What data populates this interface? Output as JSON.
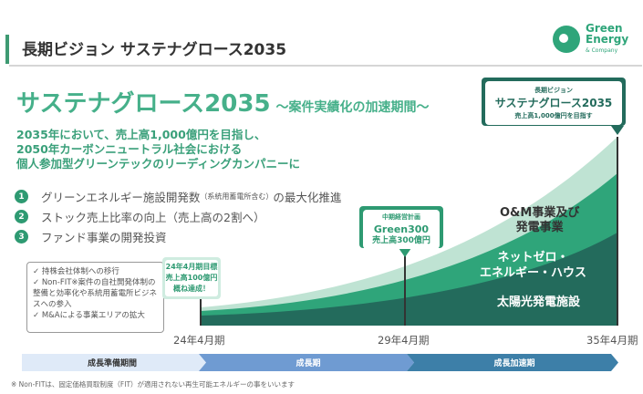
{
  "header": {
    "title": "長期ビジョン サステナグロース2035",
    "logo": {
      "line1": "Green",
      "line2": "Energy",
      "line3": "& Company"
    }
  },
  "headline": {
    "main": "サステナグロース2035",
    "sub": "～案件実績化の加速期間～"
  },
  "lead": [
    "2035年において、売上高1,000億円を目指し、",
    "2050年カーボンニュートラル社会における",
    "個人参加型グリーンテックのリーディングカンパニーに"
  ],
  "goals": [
    {
      "num": "1",
      "text": "グリーンエネルギー施設開発数",
      "small": "（系統用蓄電所含む）",
      "tail": "の最大化推進"
    },
    {
      "num": "2",
      "text": "ストック売上比率の向上（売上高の2割へ）"
    },
    {
      "num": "3",
      "text": "ファンド事業の開発投資"
    }
  ],
  "checks": [
    "✓ 持株会社体制への移行",
    "✓ Non-FIT※案件の自社開発体制の整備と効率化や系統用蓄電所ビジネスへの参入",
    "✓ M&Aによる事業エリアの拡大"
  ],
  "callouts": {
    "fy24": {
      "l1": "24年4月期目標",
      "l2": "売上高100億円",
      "l3": "概ね達成！"
    },
    "fy29": {
      "l1": "中期経営計画",
      "l2": "Green300",
      "l3": "売上高300億円"
    },
    "fy35": {
      "l1": "長期ビジョン",
      "l2": "サステナグロース2035",
      "l3": "売上高1,000億円を目指す"
    }
  },
  "chart": {
    "layers": [
      "O&M事業及び発電事業",
      "ネットゼロ・エネルギー・ハウス",
      "太陽光発電施設"
    ],
    "layer_lines": {
      "om": [
        "O&M事業及び",
        "発電事業"
      ],
      "zeh": [
        "ネットゼロ・",
        "エネルギー・ハウス"
      ],
      "solar": "太陽光発電施設"
    },
    "colors": {
      "light": "#bfe3d3",
      "mid": "#2fa57a",
      "dark": "#236b5c"
    },
    "ticks": [
      "24年4月期",
      "29年4月期",
      "35年4月期"
    ]
  },
  "phases": [
    "成長準備期間",
    "成長期",
    "成長加速期"
  ],
  "note": "※ Non-FITは、固定価格買取制度（FIT）が適用されない再生可能エネルギーの事をいいます"
}
